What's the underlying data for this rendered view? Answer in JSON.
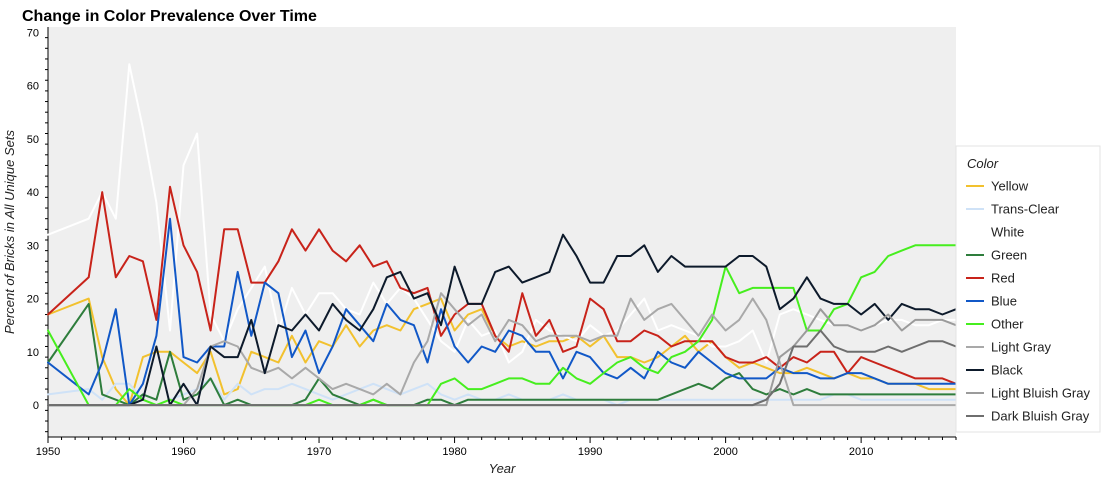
{
  "chart_data": {
    "type": "line",
    "title": "Change in Color Prevalence Over Time",
    "xlabel": "Year",
    "ylabel": "Percent of Bricks in All Unique Sets",
    "xlim": [
      1950,
      2017
    ],
    "ylim": [
      -6,
      71
    ],
    "x_ticks": [
      1950,
      1960,
      1970,
      1980,
      1990,
      2000,
      2010
    ],
    "y_ticks": [
      0,
      10,
      20,
      30,
      40,
      50,
      60,
      70
    ],
    "grid": false,
    "legend": {
      "title": "Color",
      "placement": "right"
    },
    "background": "#efefef",
    "x": [
      1950,
      1953,
      1954,
      1955,
      1956,
      1957,
      1958,
      1959,
      1960,
      1961,
      1962,
      1963,
      1964,
      1965,
      1966,
      1967,
      1968,
      1969,
      1970,
      1971,
      1972,
      1973,
      1974,
      1975,
      1976,
      1977,
      1978,
      1979,
      1980,
      1981,
      1982,
      1983,
      1984,
      1985,
      1986,
      1987,
      1988,
      1989,
      1990,
      1991,
      1992,
      1993,
      1994,
      1995,
      1996,
      1997,
      1998,
      1999,
      2000,
      2001,
      2002,
      2003,
      2004,
      2005,
      2006,
      2007,
      2008,
      2009,
      2010,
      2011,
      2012,
      2013,
      2014,
      2015,
      2016,
      2017
    ],
    "series": [
      {
        "name": "Yellow",
        "color": "#f2c12e",
        "values": [
          17,
          20,
          9,
          3,
          0,
          9,
          10,
          10,
          8,
          6,
          10,
          2,
          3,
          10,
          9,
          8,
          13,
          8,
          12,
          11,
          15,
          11,
          14,
          15,
          14,
          18,
          19,
          20,
          14,
          17,
          18,
          13,
          11,
          12,
          11,
          12,
          12,
          13,
          11,
          13,
          9,
          9,
          8,
          9,
          11,
          13,
          10,
          12,
          9,
          7,
          8,
          7,
          6,
          6,
          7,
          6,
          5,
          6,
          5,
          5,
          4,
          4,
          4,
          3,
          3,
          3
        ]
      },
      {
        "name": "Trans-Clear",
        "color": "#cfe2f7",
        "values": [
          2,
          3,
          1,
          4,
          4,
          1,
          0,
          1,
          2,
          3,
          5,
          1,
          4,
          2,
          3,
          3,
          4,
          3,
          2,
          1,
          2,
          3,
          4,
          3,
          2,
          3,
          4,
          2,
          1,
          2,
          1,
          1,
          2,
          1,
          1,
          1,
          2,
          1,
          1,
          1,
          0,
          1,
          1,
          1,
          1,
          1,
          1,
          1,
          1,
          1,
          1,
          1,
          1,
          1,
          1,
          1,
          2,
          2,
          1,
          1,
          1,
          1,
          1,
          1,
          1,
          1
        ]
      },
      {
        "name": "White",
        "color": "#ffffff",
        "values": [
          32,
          35,
          40,
          35,
          64,
          52,
          38,
          14,
          45,
          51,
          17,
          12,
          18,
          22,
          26,
          14,
          22,
          17,
          21,
          21,
          18,
          17,
          23,
          19,
          22,
          20,
          16,
          12,
          10,
          16,
          13,
          14,
          8,
          10,
          16,
          14,
          13,
          12,
          15,
          13,
          14,
          17,
          20,
          14,
          15,
          14,
          13,
          11,
          11,
          12,
          14,
          8,
          17,
          18,
          17,
          16,
          15,
          15,
          14,
          15,
          16,
          16,
          15,
          15,
          16,
          16
        ]
      },
      {
        "name": "Green",
        "color": "#2e7d3c",
        "values": [
          8,
          19,
          2,
          1,
          0,
          2,
          1,
          10,
          1,
          2,
          5,
          0,
          1,
          0,
          0,
          0,
          0,
          1,
          5,
          2,
          1,
          0,
          1,
          0,
          0,
          0,
          1,
          1,
          0,
          1,
          1,
          1,
          1,
          1,
          1,
          1,
          1,
          1,
          1,
          1,
          1,
          1,
          1,
          1,
          2,
          3,
          4,
          3,
          5,
          6,
          3,
          2,
          3,
          2,
          3,
          2,
          2,
          2,
          2,
          2,
          2,
          2,
          2,
          2,
          2,
          2
        ]
      },
      {
        "name": "Red",
        "color": "#c8231a",
        "values": [
          17,
          24,
          40,
          24,
          28,
          27,
          16,
          41,
          30,
          25,
          14,
          33,
          33,
          23,
          23,
          27,
          33,
          29,
          33,
          29,
          27,
          30,
          26,
          27,
          22,
          21,
          22,
          13,
          17,
          19,
          19,
          13,
          10,
          21,
          13,
          16,
          10,
          11,
          20,
          18,
          12,
          12,
          14,
          13,
          11,
          12,
          12,
          12,
          9,
          8,
          8,
          9,
          7,
          9,
          8,
          10,
          10,
          6,
          9,
          8,
          7,
          6,
          5,
          5,
          5,
          4
        ]
      },
      {
        "name": "Blue",
        "color": "#1158c7",
        "values": [
          8,
          2,
          8,
          18,
          0,
          4,
          13,
          35,
          9,
          8,
          11,
          11,
          25,
          13,
          23,
          21,
          9,
          14,
          6,
          11,
          18,
          15,
          12,
          19,
          16,
          15,
          8,
          18,
          11,
          8,
          11,
          10,
          14,
          13,
          10,
          10,
          5,
          10,
          9,
          6,
          5,
          7,
          5,
          10,
          8,
          7,
          10,
          8,
          6,
          5,
          5,
          5,
          7,
          6,
          6,
          5,
          5,
          6,
          6,
          5,
          4,
          4,
          4,
          4,
          4,
          4
        ]
      },
      {
        "name": "Other",
        "color": "#46ee1e",
        "values": [
          14,
          0,
          0,
          0,
          3,
          1,
          0,
          1,
          0,
          0,
          0,
          0,
          0,
          0,
          0,
          0,
          0,
          0,
          1,
          0,
          0,
          0,
          1,
          0,
          0,
          0,
          0,
          4,
          5,
          3,
          3,
          4,
          5,
          5,
          4,
          4,
          7,
          5,
          4,
          6,
          8,
          9,
          7,
          6,
          9,
          10,
          12,
          16,
          26,
          21,
          22,
          22,
          22,
          22,
          14,
          14,
          18,
          19,
          24,
          25,
          28,
          29,
          30,
          30,
          30,
          30
        ]
      },
      {
        "name": "Light Gray",
        "color": "#a9a9a9",
        "values": [
          0,
          0,
          0,
          0,
          0,
          0,
          0,
          0,
          0,
          3,
          11,
          12,
          11,
          7,
          6,
          7,
          5,
          7,
          5,
          3,
          4,
          3,
          2,
          4,
          2,
          8,
          12,
          21,
          18,
          15,
          17,
          12,
          16,
          15,
          12,
          13,
          13,
          13,
          12,
          13,
          13,
          20,
          16,
          18,
          19,
          16,
          13,
          17,
          14,
          16,
          20,
          16,
          8,
          0,
          0,
          0,
          0,
          0,
          0,
          0,
          0,
          0,
          0,
          0,
          0,
          0
        ]
      },
      {
        "name": "Black",
        "color": "#0d1a2b",
        "values": [
          0,
          0,
          0,
          0,
          0,
          1,
          11,
          0,
          4,
          0,
          11,
          9,
          9,
          16,
          6,
          15,
          14,
          17,
          14,
          19,
          16,
          14,
          18,
          24,
          25,
          20,
          21,
          15,
          26,
          19,
          19,
          25,
          26,
          23,
          24,
          25,
          32,
          28,
          23,
          23,
          28,
          28,
          30,
          25,
          28,
          26,
          26,
          26,
          26,
          28,
          28,
          26,
          18,
          20,
          24,
          20,
          19,
          19,
          17,
          19,
          16,
          19,
          18,
          18,
          17,
          18
        ]
      },
      {
        "name": "Light Bluish Gray",
        "color": "#9b9b9b",
        "values": [
          0,
          0,
          0,
          0,
          0,
          0,
          0,
          0,
          0,
          0,
          0,
          0,
          0,
          0,
          0,
          0,
          0,
          0,
          0,
          0,
          0,
          0,
          0,
          0,
          0,
          0,
          0,
          0,
          0,
          0,
          0,
          0,
          0,
          0,
          0,
          0,
          0,
          0,
          0,
          0,
          0,
          0,
          0,
          0,
          0,
          0,
          0,
          0,
          0,
          0,
          0,
          0,
          9,
          11,
          14,
          18,
          15,
          15,
          14,
          15,
          17,
          14,
          16,
          16,
          16,
          15
        ]
      },
      {
        "name": "Dark Bluish Gray",
        "color": "#6e6e6e",
        "values": [
          0,
          0,
          0,
          0,
          0,
          0,
          0,
          0,
          0,
          0,
          0,
          0,
          0,
          0,
          0,
          0,
          0,
          0,
          0,
          0,
          0,
          0,
          0,
          0,
          0,
          0,
          0,
          0,
          0,
          0,
          0,
          0,
          0,
          0,
          0,
          0,
          0,
          0,
          0,
          0,
          0,
          0,
          0,
          0,
          0,
          0,
          0,
          0,
          0,
          0,
          0,
          1,
          4,
          11,
          11,
          14,
          11,
          10,
          10,
          10,
          11,
          10,
          11,
          12,
          12,
          11
        ]
      }
    ]
  }
}
